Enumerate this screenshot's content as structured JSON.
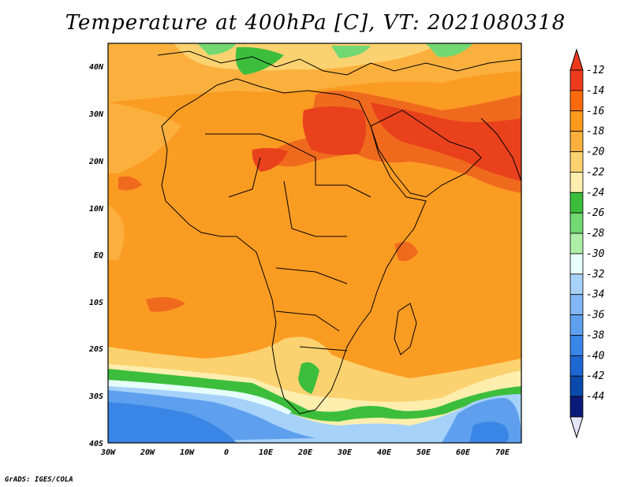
{
  "title": "Temperature at 400hPa [C], VT: 2021080318",
  "credit": "GrADS: IGES/COLA",
  "map": {
    "lon_range": [
      -30,
      75
    ],
    "lat_range": [
      -40,
      45
    ],
    "x_ticks": [
      "30W",
      "20W",
      "10W",
      "0",
      "10E",
      "20E",
      "30E",
      "40E",
      "50E",
      "60E",
      "70E"
    ],
    "y_ticks": [
      "40N",
      "30N",
      "20N",
      "10N",
      "EQ",
      "10S",
      "20S",
      "30S",
      "40S"
    ]
  },
  "colorbar": {
    "labels": [
      "-12",
      "-14",
      "-16",
      "-18",
      "-20",
      "-22",
      "-24",
      "-26",
      "-28",
      "-30",
      "-32",
      "-34",
      "-36",
      "-38",
      "-40",
      "-42",
      "-44"
    ],
    "colors": [
      "#ee3a1c",
      "#fa6a0c",
      "#fb9a1c",
      "#fbb03e",
      "#fcd270",
      "#fdeeae",
      "#3cbe3c",
      "#72d872",
      "#aeeea6",
      "#e6fffa",
      "#a6d2fa",
      "#82b6f4",
      "#5ea0ee",
      "#3a86e6",
      "#1e68d2",
      "#0a4aac",
      "#0a1a78"
    ],
    "top_color": "#ee3a1c",
    "bottom_color": "#e6e6fa"
  },
  "colors": {
    "orange": "#fa9a1c",
    "light_orange": "#fbb03e",
    "red_orange": "#f06a1e",
    "red": "#e9411c",
    "yellow": "#fcd270",
    "pale_yellow": "#fdeeae",
    "green": "#3cbe3c",
    "light_green": "#72d872",
    "pale_green": "#aeeea6",
    "cyan": "#e6fffa",
    "light_blue": "#a6d2fa",
    "blue": "#5ea0ee",
    "dark_blue": "#3a86e6"
  }
}
